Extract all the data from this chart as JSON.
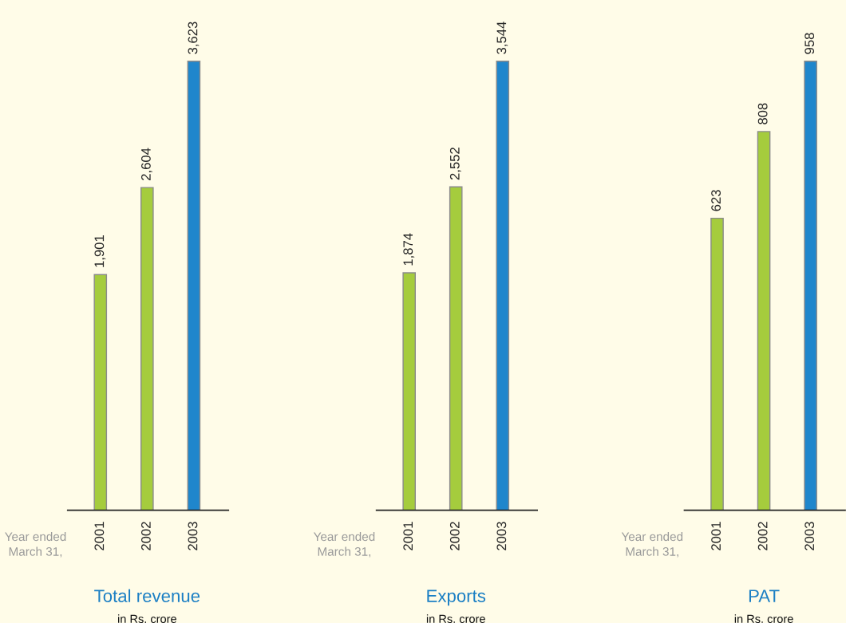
{
  "chart_data": [
    {
      "type": "bar",
      "title": "Total revenue",
      "subtitle": "in Rs. crore",
      "categories": [
        "2001",
        "2002",
        "2003"
      ],
      "values": [
        1901,
        2604,
        3623
      ],
      "colors": [
        "#a5cc3d",
        "#a5cc3d",
        "#1f86cc"
      ],
      "value_labels": [
        "1,901",
        "2,604",
        "3,623"
      ],
      "tick_labels": "x",
      "annotations": [
        "Year ended\nMarch 31,"
      ]
    },
    {
      "type": "bar",
      "title": "Exports",
      "subtitle": "in Rs. crore",
      "categories": [
        "2001",
        "2002",
        "2003"
      ],
      "values": [
        1874,
        2552,
        3544
      ],
      "colors": [
        "#a5cc3d",
        "#a5cc3d",
        "#1f86cc"
      ],
      "value_labels": [
        "1,874",
        "2,552",
        "3,544"
      ],
      "tick_labels": "x",
      "annotations": [
        "Year ended\nMarch 31,"
      ]
    },
    {
      "type": "bar",
      "title": "PAT",
      "subtitle": "in Rs. crore",
      "categories": [
        "2001",
        "2002",
        "2003"
      ],
      "values": [
        623,
        808,
        958
      ],
      "colors": [
        "#a5cc3d",
        "#a5cc3d",
        "#1f86cc"
      ],
      "value_labels": [
        "623",
        "808",
        "958"
      ],
      "tick_labels": "x",
      "annotations": [
        "Year ended\nMarch 31,"
      ]
    }
  ]
}
